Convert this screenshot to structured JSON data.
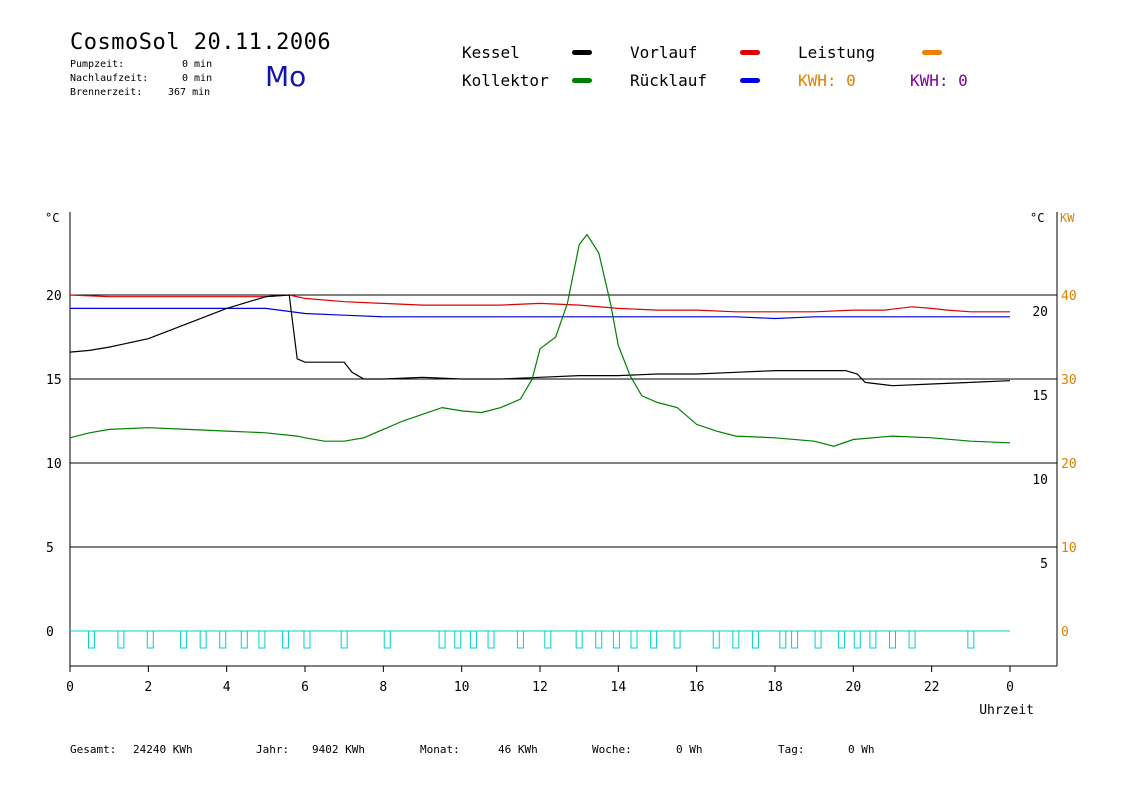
{
  "header": {
    "title": "CosmoSol 20.11.2006",
    "day": "Mo",
    "stats": [
      {
        "label": "Pumpzeit:",
        "value": "0 min"
      },
      {
        "label": "Nachlaufzeit:",
        "value": "0 min"
      },
      {
        "label": "Brennerzeit:",
        "value": "367 min"
      }
    ]
  },
  "legend": {
    "kessel": {
      "label": "Kessel",
      "color": "#000000"
    },
    "vorlauf": {
      "label": "Vorlauf",
      "color": "#e00000"
    },
    "leistung": {
      "label": "Leistung",
      "color": "#f08000"
    },
    "kollektor": {
      "label": "Kollektor",
      "color": "#008000"
    },
    "ruecklauf": {
      "label": "Rücklauf",
      "color": "#0000e0"
    },
    "kwh1": {
      "label": "KWH: 0",
      "color": "#e08000"
    },
    "kwh2": {
      "label": "KWH: 0",
      "color": "#8000a0"
    }
  },
  "footer": {
    "gesamt_label": "Gesamt:",
    "gesamt_value": "24240 KWh",
    "jahr_label": "Jahr:",
    "jahr_value": "9402 KWh",
    "monat_label": "Monat:",
    "monat_value": "46 KWh",
    "woche_label": "Woche:",
    "woche_value": "0 Wh",
    "tag_label": "Tag:",
    "tag_value": "0 Wh"
  },
  "chart_data": {
    "type": "line",
    "xlabel": "Uhrzeit",
    "ylabel_left": "°C",
    "ylabel_right_temp": "°C",
    "ylabel_right_power": "KW",
    "x_ticks": [
      "0",
      "2",
      "4",
      "6",
      "8",
      "10",
      "12",
      "14",
      "16",
      "18",
      "20",
      "22",
      "0"
    ],
    "y_left_ticks": [
      "0",
      "5",
      "10",
      "15",
      "20"
    ],
    "y_right_temp_ticks": [
      "5",
      "10",
      "15",
      "20"
    ],
    "y_right_power_ticks": [
      "0",
      "10",
      "20",
      "30",
      "40"
    ],
    "xlim": [
      0,
      24
    ],
    "ylim": [
      -1,
      27
    ],
    "grid_y": [
      5,
      10,
      15,
      20
    ],
    "series": [
      {
        "name": "Vorlauf",
        "color": "#e00000",
        "points": [
          [
            0,
            20.0
          ],
          [
            1,
            19.9
          ],
          [
            2,
            19.9
          ],
          [
            3,
            19.9
          ],
          [
            4,
            19.9
          ],
          [
            5,
            19.9
          ],
          [
            5.6,
            20.0
          ],
          [
            6,
            19.8
          ],
          [
            7,
            19.6
          ],
          [
            8,
            19.5
          ],
          [
            9,
            19.4
          ],
          [
            10,
            19.4
          ],
          [
            11,
            19.4
          ],
          [
            12,
            19.5
          ],
          [
            13,
            19.4
          ],
          [
            14,
            19.2
          ],
          [
            15,
            19.1
          ],
          [
            16,
            19.1
          ],
          [
            17,
            19.0
          ],
          [
            18,
            19.0
          ],
          [
            19,
            19.0
          ],
          [
            20,
            19.1
          ],
          [
            20.8,
            19.1
          ],
          [
            21.5,
            19.3
          ],
          [
            22,
            19.2
          ],
          [
            22.4,
            19.1
          ],
          [
            23,
            19.0
          ],
          [
            24,
            19.0
          ]
        ]
      },
      {
        "name": "Rücklauf",
        "color": "#0000e0",
        "points": [
          [
            0,
            19.2
          ],
          [
            2,
            19.2
          ],
          [
            4,
            19.2
          ],
          [
            5,
            19.2
          ],
          [
            6,
            18.9
          ],
          [
            7,
            18.8
          ],
          [
            8,
            18.7
          ],
          [
            9,
            18.7
          ],
          [
            10,
            18.7
          ],
          [
            11,
            18.7
          ],
          [
            12,
            18.7
          ],
          [
            13,
            18.7
          ],
          [
            14,
            18.7
          ],
          [
            15,
            18.7
          ],
          [
            16,
            18.7
          ],
          [
            17,
            18.7
          ],
          [
            18,
            18.6
          ],
          [
            19,
            18.7
          ],
          [
            20,
            18.7
          ],
          [
            21,
            18.7
          ],
          [
            22,
            18.7
          ],
          [
            23,
            18.7
          ],
          [
            24,
            18.7
          ]
        ]
      },
      {
        "name": "Kessel",
        "color": "#000000",
        "points": [
          [
            0,
            16.6
          ],
          [
            0.5,
            16.7
          ],
          [
            1,
            16.9
          ],
          [
            2,
            17.4
          ],
          [
            3,
            18.3
          ],
          [
            4,
            19.2
          ],
          [
            5,
            19.9
          ],
          [
            5.6,
            20.0
          ],
          [
            5.65,
            19.0
          ],
          [
            5.8,
            16.2
          ],
          [
            6,
            16.0
          ],
          [
            7,
            16.0
          ],
          [
            7.2,
            15.4
          ],
          [
            7.5,
            15.0
          ],
          [
            8,
            15.0
          ],
          [
            9,
            15.1
          ],
          [
            10,
            15.0
          ],
          [
            11,
            15.0
          ],
          [
            12,
            15.1
          ],
          [
            13,
            15.2
          ],
          [
            14,
            15.2
          ],
          [
            15,
            15.3
          ],
          [
            16,
            15.3
          ],
          [
            17,
            15.4
          ],
          [
            18,
            15.5
          ],
          [
            19,
            15.5
          ],
          [
            19.8,
            15.5
          ],
          [
            20.1,
            15.3
          ],
          [
            20.3,
            14.8
          ],
          [
            21,
            14.6
          ],
          [
            22,
            14.7
          ],
          [
            23,
            14.8
          ],
          [
            24,
            14.9
          ]
        ]
      },
      {
        "name": "Kollektor",
        "color": "#008000",
        "points": [
          [
            0,
            11.5
          ],
          [
            0.5,
            11.8
          ],
          [
            1,
            12.0
          ],
          [
            2,
            12.1
          ],
          [
            3,
            12.0
          ],
          [
            4,
            11.9
          ],
          [
            5,
            11.8
          ],
          [
            5.8,
            11.6
          ],
          [
            6,
            11.5
          ],
          [
            6.5,
            11.3
          ],
          [
            7,
            11.3
          ],
          [
            7.5,
            11.5
          ],
          [
            8,
            12.0
          ],
          [
            8.5,
            12.5
          ],
          [
            9,
            12.9
          ],
          [
            9.5,
            13.3
          ],
          [
            10,
            13.1
          ],
          [
            10.5,
            13.0
          ],
          [
            11,
            13.3
          ],
          [
            11.5,
            13.8
          ],
          [
            11.8,
            15.0
          ],
          [
            12,
            16.8
          ],
          [
            12.4,
            17.5
          ],
          [
            12.7,
            19.5
          ],
          [
            13,
            23.0
          ],
          [
            13.2,
            23.6
          ],
          [
            13.5,
            22.5
          ],
          [
            13.8,
            19.5
          ],
          [
            14,
            17.0
          ],
          [
            14.3,
            15.2
          ],
          [
            14.6,
            14.0
          ],
          [
            15,
            13.6
          ],
          [
            15.5,
            13.3
          ],
          [
            16,
            12.3
          ],
          [
            16.5,
            11.9
          ],
          [
            17,
            11.6
          ],
          [
            18,
            11.5
          ],
          [
            19,
            11.3
          ],
          [
            19.5,
            11.0
          ],
          [
            20,
            11.4
          ],
          [
            21,
            11.6
          ],
          [
            22,
            11.5
          ],
          [
            23,
            11.3
          ],
          [
            24,
            11.2
          ]
        ]
      }
    ],
    "pump_pulses": [
      0.55,
      1.3,
      2.05,
      2.9,
      3.4,
      3.9,
      4.45,
      4.9,
      5.5,
      6.05,
      7.0,
      8.1,
      9.5,
      9.9,
      10.3,
      10.75,
      11.5,
      12.2,
      13.0,
      13.5,
      13.95,
      14.4,
      14.9,
      15.5,
      16.5,
      17.0,
      17.5,
      18.2,
      18.5,
      19.1,
      19.7,
      20.1,
      20.5,
      21.0,
      21.5,
      23.0
    ]
  }
}
